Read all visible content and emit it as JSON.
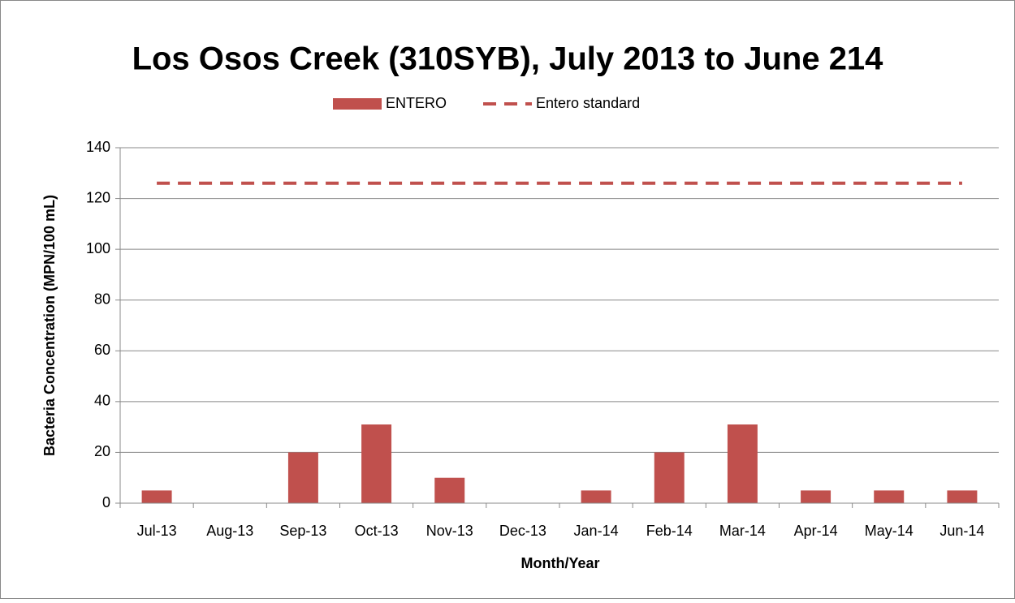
{
  "chart_data": {
    "type": "bar",
    "title": "Los Osos Creek (310SYB), July 2013 to June 214",
    "x_label": "Month/Year",
    "y_label": "Bacteria Concentration (MPN/100 mL)",
    "categories": [
      "Jul-13",
      "Aug-13",
      "Sep-13",
      "Oct-13",
      "Nov-13",
      "Dec-13",
      "Jan-14",
      "Feb-14",
      "Mar-14",
      "Apr-14",
      "May-14",
      "Jun-14"
    ],
    "series": [
      {
        "name": "ENTERO",
        "type": "bar",
        "color": "#c0504d",
        "values": [
          5,
          null,
          20,
          31,
          10,
          null,
          5,
          20,
          31,
          5,
          5,
          5
        ]
      },
      {
        "name": "Entero standard",
        "type": "line",
        "style": "dashed",
        "color": "#c0504d",
        "values": [
          126,
          126,
          126,
          126,
          126,
          126,
          126,
          126,
          126,
          126,
          126,
          126
        ]
      }
    ],
    "ylim": [
      0,
      140
    ],
    "yticks": [
      0,
      20,
      40,
      60,
      80,
      100,
      120,
      140
    ],
    "grid": true,
    "legend": "top"
  }
}
